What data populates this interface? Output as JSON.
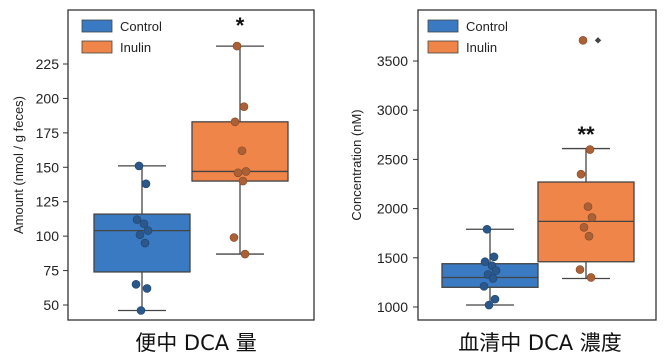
{
  "chart_data": [
    {
      "type": "box",
      "caption": "便中 DCA 量",
      "ylabel": "Amount (nmol / g feces)",
      "yticks": [
        50,
        75,
        100,
        125,
        150,
        175,
        200,
        225
      ],
      "ylim": [
        37,
        246
      ],
      "grid": false,
      "legend": {
        "position": "top-left",
        "entries": [
          "Control",
          "Inulin"
        ]
      },
      "groups": [
        {
          "name": "Control",
          "color": "#3a7ac2",
          "box": {
            "q1": 74,
            "median": 104,
            "q3": 116,
            "whisker_low": 46,
            "whisker_high": 151
          },
          "points": [
            151,
            138,
            112,
            109,
            104,
            101,
            95,
            65,
            62,
            46
          ],
          "outliers": []
        },
        {
          "name": "Inulin",
          "color": "#ef8549",
          "box": {
            "q1": 140,
            "median": 147,
            "q3": 183,
            "whisker_low": 87,
            "whisker_high": 238
          },
          "points": [
            238,
            194,
            183,
            162,
            147,
            146,
            140,
            99,
            87
          ],
          "outliers": [],
          "significance": "*"
        }
      ]
    },
    {
      "type": "box",
      "caption": "血清中 DCA 濃度",
      "ylabel": "Concentration (nM)",
      "yticks": [
        1000,
        1500,
        2000,
        2500,
        3000,
        3500
      ],
      "ylim": [
        920,
        3850
      ],
      "grid": false,
      "legend": {
        "position": "top-left",
        "entries": [
          "Control",
          "Inulin"
        ]
      },
      "groups": [
        {
          "name": "Control",
          "color": "#3a7ac2",
          "box": {
            "q1": 1200,
            "median": 1300,
            "q3": 1440,
            "whisker_low": 1020,
            "whisker_high": 1790
          },
          "points": [
            1790,
            1510,
            1460,
            1420,
            1370,
            1330,
            1290,
            1210,
            1080,
            1020
          ],
          "outliers": []
        },
        {
          "name": "Inulin",
          "color": "#ef8549",
          "box": {
            "q1": 1460,
            "median": 1870,
            "q3": 2270,
            "whisker_low": 1290,
            "whisker_high": 2610
          },
          "points": [
            3710,
            2600,
            2350,
            2020,
            1910,
            1810,
            1720,
            1380,
            1300
          ],
          "outliers": [
            3710
          ],
          "significance": "**"
        }
      ]
    }
  ]
}
